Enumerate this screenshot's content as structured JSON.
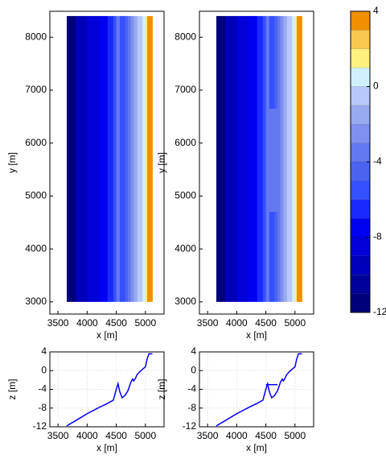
{
  "chart_data": [
    {
      "type": "contour",
      "xlabel": "x [m]",
      "ylabel": "y [m]",
      "x": [
        3650,
        3800,
        4000,
        4200,
        4350,
        4450,
        4500,
        4530,
        4560,
        4600,
        4650,
        4700,
        4750,
        4780,
        4800,
        4830,
        4860,
        4900,
        4950,
        5000,
        5030,
        5060,
        5120
      ],
      "values": [
        -11.8,
        -10.7,
        -9.2,
        -7.9,
        -7,
        -6.3,
        -4,
        -2.8,
        -4.5,
        -5.8,
        -5.3,
        -4.3,
        -2.5,
        -1.8,
        -2.2,
        -1.6,
        -0.8,
        -0.3,
        0.3,
        0.8,
        2.5,
        3.6,
        3.6
      ],
      "y": [
        3000,
        8400
      ],
      "xlim": [
        3360,
        5320
      ],
      "ylim": [
        2770,
        8490
      ],
      "xticks": [
        3500,
        4000,
        4500,
        5000
      ],
      "yticks": [
        3000,
        4000,
        5000,
        6000,
        7000,
        8000
      ]
    },
    {
      "type": "contour",
      "xlabel": "x [m]",
      "ylabel": "y [m]",
      "x": [
        3650,
        3800,
        4000,
        4200,
        4350,
        4450,
        4500,
        4530,
        4560,
        4600,
        4650,
        4700,
        4750,
        4780,
        4800,
        4830,
        4860,
        4900,
        4950,
        5000,
        5030,
        5060,
        5120
      ],
      "values": [
        -11.8,
        -10.7,
        -9.2,
        -7.9,
        -7,
        -6.3,
        -4,
        -2.8,
        -4.5,
        -5.8,
        -5.3,
        -4.3,
        -2.5,
        -1.8,
        -2.2,
        -1.6,
        -0.8,
        -0.3,
        0.3,
        0.8,
        2.5,
        3.6,
        3.6
      ],
      "y": [
        3000,
        8400
      ],
      "patch": {
        "x": [
          4520,
          4720
        ],
        "y": [
          4700,
          6650
        ],
        "z": -3
      },
      "xlim": [
        3360,
        5320
      ],
      "ylim": [
        2770,
        8490
      ],
      "xticks": [
        3500,
        4000,
        4500,
        5000
      ],
      "yticks": [
        3000,
        4000,
        5000,
        6000,
        7000,
        8000
      ]
    },
    {
      "type": "colorbar",
      "levels": [
        -12,
        -11,
        -10,
        -9,
        -8,
        -7,
        -6,
        -5,
        -4,
        -3,
        -2,
        -1,
        0,
        1,
        2,
        3,
        4
      ],
      "colors": [
        "#00007a",
        "#00009a",
        "#0000b8",
        "#0000d8",
        "#0000f0",
        "#1a2aff",
        "#3550ff",
        "#4a64f0",
        "#6478f0",
        "#8090f0",
        "#98aaf0",
        "#b8c8f8",
        "#d0f0ff",
        "#fff080",
        "#f8c850",
        "#f09000"
      ],
      "ylim": [
        -12,
        4
      ],
      "yticks": [
        -12,
        -8,
        -4,
        0,
        4
      ]
    },
    {
      "type": "line",
      "xlabel": "x [m]",
      "ylabel": "z [m]",
      "grid": true,
      "series": [
        {
          "color": "#0000ff",
          "x": [
            3650,
            3800,
            4000,
            4200,
            4350,
            4450,
            4500,
            4530,
            4560,
            4600,
            4650,
            4700,
            4750,
            4780,
            4800,
            4830,
            4860,
            4900,
            4950,
            5000,
            5030,
            5060,
            5120
          ],
          "values": [
            -11.8,
            -10.7,
            -9.2,
            -7.9,
            -7,
            -6.3,
            -4,
            -2.8,
            -4.5,
            -5.8,
            -5.3,
            -4.3,
            -2.5,
            -1.8,
            -2.2,
            -1.6,
            -0.8,
            -0.3,
            0.3,
            0.8,
            2.5,
            3.6,
            3.6
          ]
        }
      ],
      "xlim": [
        3360,
        5320
      ],
      "ylim": [
        -12,
        4
      ],
      "xticks": [
        3500,
        4000,
        4500,
        5000
      ],
      "yticks": [
        -12,
        -8,
        -4,
        0,
        4
      ]
    },
    {
      "type": "line",
      "xlabel": "x [m]",
      "ylabel": "z [m]",
      "grid": true,
      "series": [
        {
          "color": "#0000ff",
          "x": [
            3650,
            3800,
            4000,
            4200,
            4350,
            4450,
            4500,
            4530,
            4560,
            4600,
            4650,
            4700,
            4750,
            4780,
            4800,
            4830,
            4860,
            4900,
            4950,
            5000,
            5030,
            5060,
            5120
          ],
          "values": [
            -11.8,
            -10.7,
            -9.2,
            -7.9,
            -7,
            -6.3,
            -4,
            -2.8,
            -4.5,
            -5.8,
            -5.3,
            -4.3,
            -2.5,
            -1.8,
            -2.2,
            -1.6,
            -0.8,
            -0.3,
            0.3,
            0.8,
            2.5,
            3.6,
            3.6
          ]
        },
        {
          "color": "#0000ff",
          "x": [
            4500,
            4700
          ],
          "values": [
            -3,
            -3
          ]
        }
      ],
      "xlim": [
        3360,
        5320
      ],
      "ylim": [
        -12,
        4
      ],
      "xticks": [
        3500,
        4000,
        4500,
        5000
      ],
      "yticks": [
        -12,
        -8,
        -4,
        0,
        4
      ]
    }
  ]
}
